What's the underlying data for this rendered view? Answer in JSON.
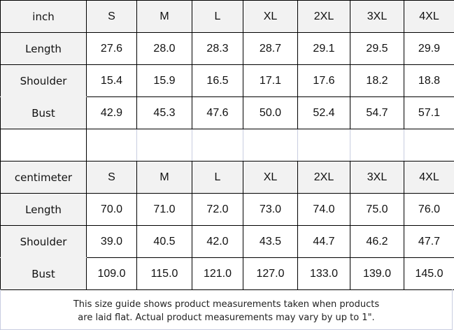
{
  "sizes": [
    "S",
    "M",
    "L",
    "XL",
    "2XL",
    "3XL",
    "4XL"
  ],
  "tables": [
    {
      "unit": "inch",
      "rows": [
        {
          "label": "Length",
          "values": [
            "27.6",
            "28.0",
            "28.3",
            "28.7",
            "29.1",
            "29.5",
            "29.9"
          ]
        },
        {
          "label": "Shoulder",
          "values": [
            "15.4",
            "15.9",
            "16.5",
            "17.1",
            "17.6",
            "18.2",
            "18.8"
          ]
        },
        {
          "label": "Bust",
          "values": [
            "42.9",
            "45.3",
            "47.6",
            "50.0",
            "52.4",
            "54.7",
            "57.1"
          ]
        }
      ]
    },
    {
      "unit": "centimeter",
      "rows": [
        {
          "label": "Length",
          "values": [
            "70.0",
            "71.0",
            "72.0",
            "73.0",
            "74.0",
            "75.0",
            "76.0"
          ]
        },
        {
          "label": "Shoulder",
          "values": [
            "39.0",
            "40.5",
            "42.0",
            "43.5",
            "44.7",
            "46.2",
            "47.7"
          ]
        },
        {
          "label": "Bust",
          "values": [
            "109.0",
            "115.0",
            "121.0",
            "127.0",
            "133.0",
            "139.0",
            "145.0"
          ]
        }
      ]
    }
  ],
  "footer": {
    "line1": "This size guide shows product measurements taken when products",
    "line2": "are laid flat. Actual product measurements may vary by up to 1\"."
  }
}
